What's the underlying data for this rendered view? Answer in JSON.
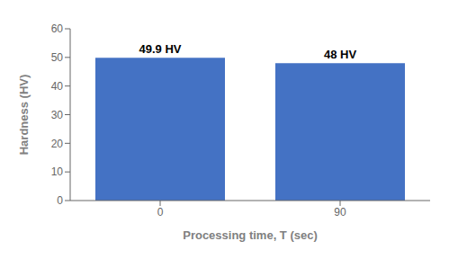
{
  "chart_data": {
    "type": "bar",
    "categories": [
      "0",
      "90"
    ],
    "values": [
      49.9,
      48
    ],
    "value_labels": [
      "49.9 HV",
      "48 HV"
    ],
    "data_labels": true,
    "color": "#4472C4",
    "xlabel": "Processing time, T (sec)",
    "ylabel": "Hardness (HV)",
    "ylim": [
      0,
      60
    ],
    "yticks": [
      0,
      10,
      20,
      30,
      40,
      50,
      60
    ],
    "grid": false
  }
}
